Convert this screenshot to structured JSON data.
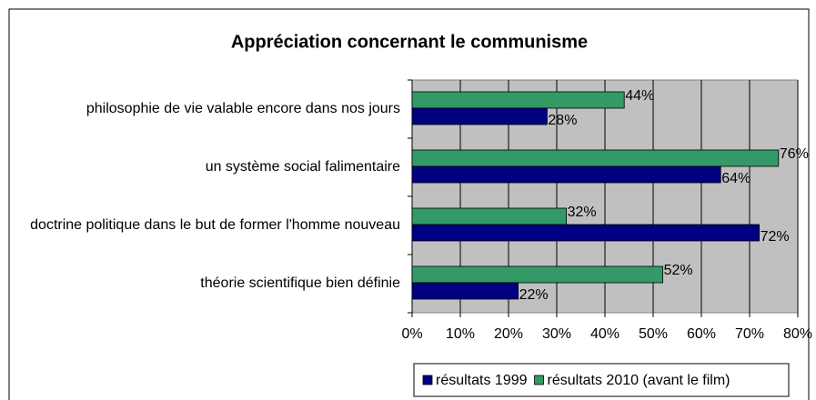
{
  "chart_data": {
    "type": "barh",
    "title": "Appréciation concernant le communisme",
    "categories": [
      "philosophie de vie valable encore dans nos jours",
      "un système social falimentaire",
      "doctrine politique dans le but de former l'homme nouveau",
      "théorie scientifique bien définie"
    ],
    "series": [
      {
        "name": "résultats 1999",
        "color": "#000080",
        "values": [
          28,
          64,
          72,
          22
        ],
        "value_labels": [
          "28%",
          "64%",
          "72%",
          "22%"
        ]
      },
      {
        "name": "résultats 2010 (avant le film)",
        "color": "#339966",
        "values": [
          44,
          76,
          32,
          52
        ],
        "value_labels": [
          "44%",
          "76%",
          "32%",
          "52%"
        ]
      }
    ],
    "xlim": [
      0,
      80
    ],
    "xticks": [
      {
        "value": 0,
        "label": "0%"
      },
      {
        "value": 10,
        "label": "10%"
      },
      {
        "value": 20,
        "label": "20%"
      },
      {
        "value": 30,
        "label": "30%"
      },
      {
        "value": 40,
        "label": "40%"
      },
      {
        "value": 50,
        "label": "50%"
      },
      {
        "value": 60,
        "label": "60%"
      },
      {
        "value": 70,
        "label": "70%"
      },
      {
        "value": 80,
        "label": "80%"
      }
    ],
    "grid": true,
    "legend": "bottom"
  }
}
